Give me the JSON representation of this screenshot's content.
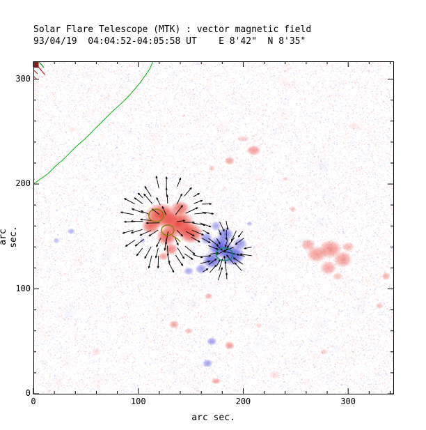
{
  "chart_data": {
    "type": "heatmap",
    "title": "Solar Flare Telescope (MTK) : vector magnetic field",
    "subtitle": "93/04/19  04:04:52-04:05:58 UT    E 8'42\"  N 8'35\"",
    "xlabel": "arc sec.",
    "ylabel": "arc sec.",
    "xlim": [
      0,
      343
    ],
    "ylim": [
      0,
      317
    ],
    "xticks": [
      0,
      100,
      200,
      300
    ],
    "yticks": [
      0,
      100,
      200,
      300
    ],
    "minor_tick_interval": 20,
    "polarity_colors": {
      "positive": "#e8392f",
      "negative": "#4040d8"
    },
    "blob_format": [
      "x_arcsec",
      "y_arcsec",
      "rx",
      "ry",
      "peak_alpha",
      "polarity(1=positive/red,-1=negative/blue)"
    ],
    "blobs": [
      [
        122,
        170,
        16,
        12,
        0.9,
        1
      ],
      [
        138,
        162,
        16,
        13,
        0.9,
        1
      ],
      [
        150,
        153,
        12,
        10,
        0.85,
        1
      ],
      [
        127,
        150,
        10,
        9,
        0.8,
        1
      ],
      [
        112,
        160,
        9,
        8,
        0.75,
        1
      ],
      [
        140,
        177,
        9,
        7,
        0.7,
        1
      ],
      [
        131,
        138,
        7,
        6,
        0.6,
        1
      ],
      [
        124,
        131,
        5,
        4,
        0.5,
        1
      ],
      [
        178,
        140,
        12,
        11,
        0.85,
        -1
      ],
      [
        190,
        132,
        12,
        10,
        0.85,
        -1
      ],
      [
        170,
        127,
        9,
        8,
        0.75,
        -1
      ],
      [
        183,
        152,
        8,
        7,
        0.65,
        -1
      ],
      [
        165,
        148,
        6,
        6,
        0.55,
        -1
      ],
      [
        197,
        143,
        7,
        6,
        0.55,
        -1
      ],
      [
        174,
        160,
        5,
        5,
        0.45,
        -1
      ],
      [
        160,
        119,
        6,
        5,
        0.5,
        -1
      ],
      [
        148,
        117,
        5,
        4,
        0.45,
        -1
      ],
      [
        270,
        133,
        10,
        8,
        0.5,
        1
      ],
      [
        283,
        138,
        11,
        9,
        0.55,
        1
      ],
      [
        295,
        128,
        9,
        8,
        0.5,
        1
      ],
      [
        281,
        120,
        8,
        7,
        0.45,
        1
      ],
      [
        262,
        142,
        7,
        6,
        0.4,
        1
      ],
      [
        300,
        140,
        6,
        5,
        0.35,
        1
      ],
      [
        290,
        112,
        5,
        4,
        0.3,
        1
      ],
      [
        210,
        232,
        7,
        5,
        0.5,
        1
      ],
      [
        187,
        222,
        5,
        4,
        0.45,
        1
      ],
      [
        170,
        215,
        3,
        3,
        0.3,
        1
      ],
      [
        200,
        243,
        6,
        3,
        0.25,
        1
      ],
      [
        247,
        176,
        3,
        3,
        0.3,
        1
      ],
      [
        36,
        155,
        4,
        3,
        0.4,
        -1
      ],
      [
        22,
        146,
        3,
        3,
        0.35,
        -1
      ],
      [
        104,
        146,
        3,
        2.5,
        0.35,
        -1
      ],
      [
        206,
        162,
        3,
        2.5,
        0.3,
        -1
      ],
      [
        336,
        112,
        4,
        4,
        0.4,
        1
      ],
      [
        330,
        84,
        4,
        3,
        0.3,
        1
      ],
      [
        167,
        93,
        4,
        3,
        0.4,
        1
      ],
      [
        134,
        66,
        5,
        4,
        0.45,
        1
      ],
      [
        148,
        60,
        4,
        3,
        0.35,
        1
      ],
      [
        170,
        50,
        5,
        4,
        0.5,
        -1
      ],
      [
        187,
        46,
        5,
        4,
        0.5,
        1
      ],
      [
        166,
        29,
        5,
        4,
        0.5,
        -1
      ],
      [
        174,
        12,
        5,
        3,
        0.45,
        1
      ],
      [
        277,
        40,
        4,
        3,
        0.25,
        1
      ],
      [
        215,
        65,
        3,
        3,
        0.2,
        1
      ],
      [
        240,
        205,
        3,
        2,
        0.25,
        1
      ],
      [
        60,
        40,
        5,
        4,
        0.15,
        1
      ],
      [
        230,
        18,
        6,
        4,
        0.15,
        1
      ],
      [
        37,
        252,
        4,
        3,
        0.12,
        1
      ],
      [
        305,
        255,
        5,
        4,
        0.1,
        1
      ]
    ],
    "contours": [
      {
        "type": "ellipse",
        "x": 117,
        "y": 170,
        "rx": 7,
        "ry": 6,
        "color": "#7f7f00"
      },
      {
        "type": "ellipse",
        "x": 128,
        "y": 156,
        "rx": 6,
        "ry": 5,
        "color": "#7f7f00"
      },
      {
        "type": "path",
        "color": "#7f7f00",
        "points": [
          [
            132,
            151
          ],
          [
            137,
            148
          ],
          [
            140,
            145
          ]
        ]
      },
      {
        "type": "ellipse",
        "x": 182,
        "y": 133,
        "rx": 8,
        "ry": 6,
        "color": "#009060"
      }
    ],
    "limb_contour": {
      "color": "#00b400",
      "points": [
        [
          0,
          200
        ],
        [
          7,
          205
        ],
        [
          14,
          210
        ],
        [
          21,
          217
        ],
        [
          28,
          223
        ],
        [
          34,
          229
        ],
        [
          41,
          236
        ],
        [
          49,
          243
        ],
        [
          56,
          250
        ],
        [
          62,
          256
        ],
        [
          69,
          263
        ],
        [
          76,
          270
        ],
        [
          84,
          277
        ],
        [
          91,
          284
        ],
        [
          97,
          291
        ],
        [
          102,
          297
        ],
        [
          107,
          304
        ],
        [
          111,
          310
        ],
        [
          114,
          317
        ]
      ]
    },
    "corner_marks": [
      {
        "color": "#b22222",
        "points": [
          [
            1,
            316
          ],
          [
            7,
            309
          ],
          [
            11,
            304
          ]
        ]
      },
      {
        "color": "#00a000",
        "points": [
          [
            5,
            317
          ],
          [
            10,
            311
          ]
        ]
      },
      {
        "color": "#7f3f00",
        "points": [
          [
            0,
            309
          ],
          [
            4,
            305
          ]
        ]
      },
      {
        "color": "#cc3333",
        "points": [
          [
            0,
            303
          ],
          [
            3,
            300
          ]
        ]
      }
    ],
    "corner_patch": {
      "color": "#8b1a1a",
      "x": 0,
      "y": 311,
      "w": 5,
      "h": 6
    },
    "vectors": {
      "color": "#111111",
      "seed": 7,
      "grid": {
        "x0": 96,
        "x1": 218,
        "y0": 108,
        "y1": 196,
        "step": 8
      },
      "pos_center": [
        130,
        163
      ],
      "neg_center": [
        181,
        136
      ],
      "pos_radius": 38,
      "neg_radius": 30,
      "length": 10
    },
    "noise": {
      "seed": 42,
      "fine_count": 42000,
      "fine_alpha": 0.28,
      "coarse_count": 260,
      "coarse_alpha": 0.05,
      "red": "#e8392f",
      "blue": "#4040d8",
      "red_fraction": 0.53
    }
  }
}
